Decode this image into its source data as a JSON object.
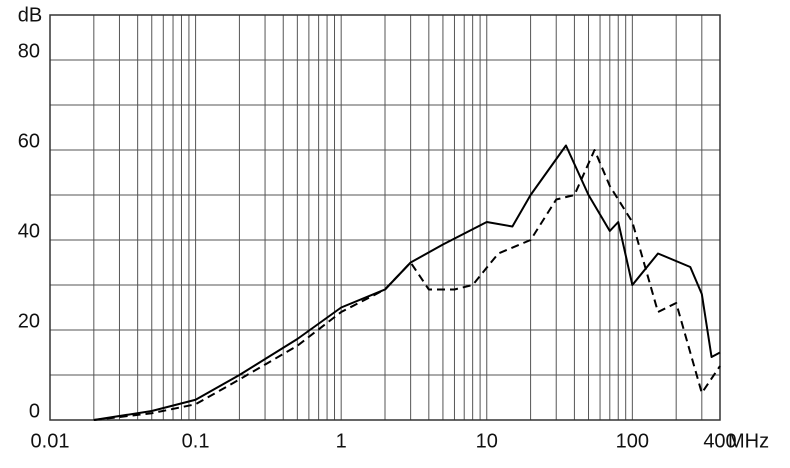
{
  "chart_data": {
    "type": "line",
    "y_label": "dB",
    "x_label": "MHz",
    "xscale": "log",
    "xlim": [
      0.01,
      400
    ],
    "ylim": [
      0,
      90
    ],
    "xticks": [
      0.01,
      0.1,
      1,
      10,
      100,
      400
    ],
    "x_minor_ticks": [
      0.02,
      0.03,
      0.04,
      0.05,
      0.06,
      0.07,
      0.08,
      0.09,
      0.2,
      0.3,
      0.4,
      0.5,
      0.6,
      0.7,
      0.8,
      0.9,
      2,
      3,
      4,
      5,
      6,
      7,
      8,
      9,
      20,
      30,
      40,
      50,
      60,
      70,
      80,
      90,
      200,
      300
    ],
    "yticks": [
      0,
      20,
      40,
      60,
      80
    ],
    "y_minor_ticks": [
      10,
      30,
      50,
      70,
      90
    ],
    "grid": true,
    "series": [
      {
        "color": "#000000",
        "dash": false,
        "x": [
          0.02,
          0.05,
          0.1,
          0.2,
          0.5,
          1,
          2,
          3,
          5,
          10,
          15,
          20,
          35,
          50,
          70,
          80,
          100,
          150,
          250,
          300,
          350,
          400
        ],
        "values": [
          0,
          2,
          4.5,
          10,
          18,
          25,
          29,
          35,
          39,
          44,
          43,
          50,
          61,
          50,
          42,
          44,
          30,
          37,
          34,
          28,
          14,
          15
        ]
      },
      {
        "color": "#000000",
        "dash": true,
        "x": [
          0.02,
          0.05,
          0.1,
          0.2,
          0.5,
          1,
          2,
          3,
          4,
          6,
          8,
          12,
          20,
          30,
          40,
          55,
          70,
          100,
          150,
          200,
          300,
          400
        ],
        "values": [
          0,
          1.5,
          3.5,
          9,
          16.5,
          24,
          29,
          35,
          29,
          29,
          30,
          37,
          40,
          49,
          50,
          60,
          52,
          44,
          24,
          26,
          6,
          12
        ]
      }
    ]
  }
}
